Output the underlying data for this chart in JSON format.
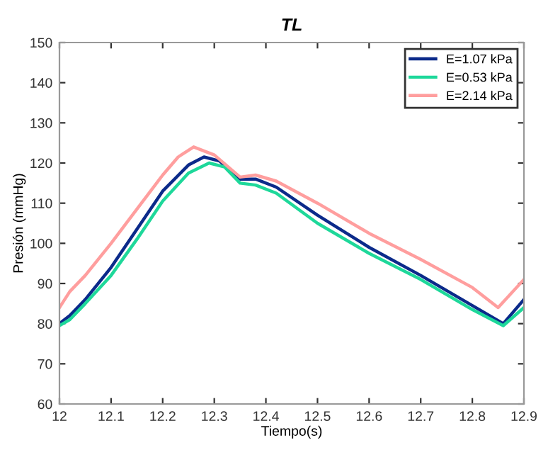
{
  "chart_data": {
    "type": "line",
    "title": "TL",
    "xlabel": "Tiempo(s)",
    "ylabel": "Presión (mmHg)",
    "xlim": [
      12,
      12.9
    ],
    "ylim": [
      60,
      150
    ],
    "xticks": [
      12,
      12.1,
      12.2,
      12.3,
      12.4,
      12.5,
      12.6,
      12.7,
      12.8,
      12.9
    ],
    "yticks": [
      60,
      70,
      80,
      90,
      100,
      110,
      120,
      130,
      140,
      150
    ],
    "grid": false,
    "legend": "top right",
    "line_style": "solid",
    "marker": "none",
    "series": [
      {
        "name": "E=1.07 kPa",
        "color": "#0b2a8a",
        "x": [
          12.0,
          12.02,
          12.05,
          12.1,
          12.15,
          12.2,
          12.25,
          12.28,
          12.31,
          12.35,
          12.38,
          12.42,
          12.5,
          12.6,
          12.7,
          12.8,
          12.86,
          12.9
        ],
        "values": [
          80,
          82,
          86,
          94,
          103.5,
          113,
          119.5,
          121.5,
          120.5,
          116,
          116,
          114,
          107,
          99,
          92,
          84.5,
          80,
          86
        ]
      },
      {
        "name": "E=0.53 kPa",
        "color": "#1ed89a",
        "x": [
          12.0,
          12.02,
          12.05,
          12.1,
          12.15,
          12.2,
          12.25,
          12.29,
          12.32,
          12.35,
          12.38,
          12.42,
          12.5,
          12.6,
          12.7,
          12.8,
          12.86,
          12.9
        ],
        "values": [
          79.5,
          81,
          85,
          92,
          101,
          110.5,
          117.5,
          120,
          119,
          115,
          114.5,
          112.5,
          105,
          97.5,
          91,
          83.5,
          79.5,
          84
        ]
      },
      {
        "name": "E=2.14 kPa",
        "color": "#ff9e9e",
        "x": [
          12.0,
          12.02,
          12.05,
          12.1,
          12.15,
          12.2,
          12.23,
          12.26,
          12.3,
          12.35,
          12.38,
          12.42,
          12.5,
          12.6,
          12.7,
          12.8,
          12.85,
          12.9
        ],
        "values": [
          84,
          88,
          92,
          100,
          108.5,
          117,
          121.5,
          124,
          122,
          116.5,
          117,
          115.5,
          110,
          102.5,
          96,
          89,
          84,
          91
        ]
      }
    ]
  }
}
